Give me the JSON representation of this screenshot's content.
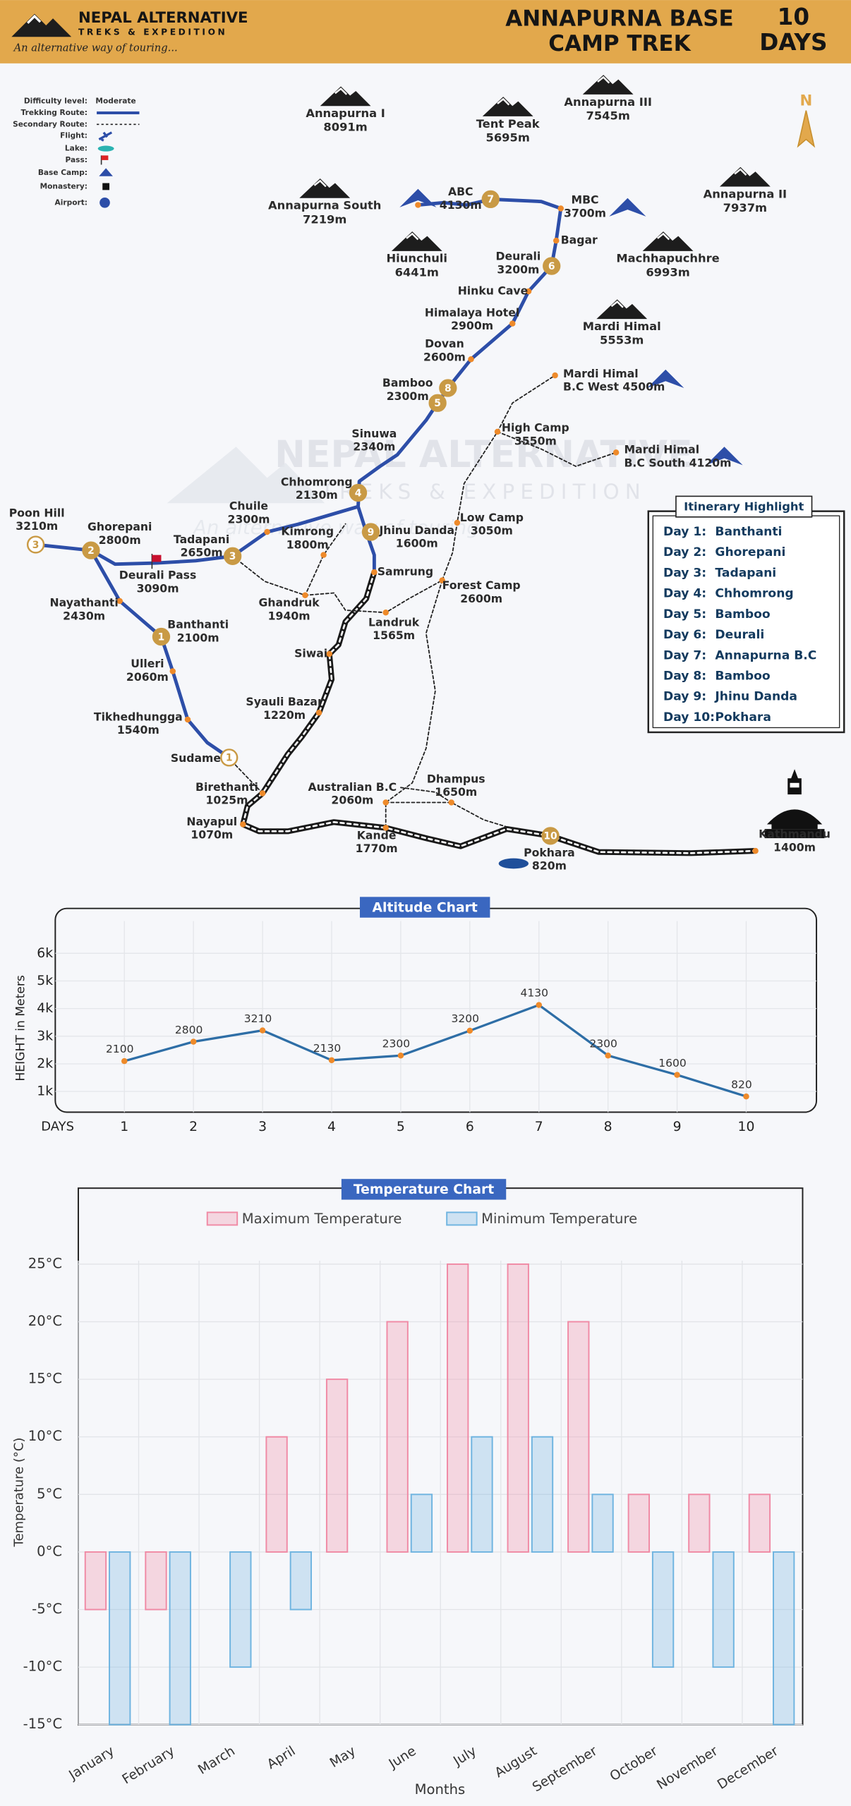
{
  "header": {
    "logo_name": "NEPAL ALTERNATIVE",
    "logo_sub": "TREKS & EXPEDITION",
    "tagline": "An alternative way of touring...",
    "title_lines": [
      "ANNAPURNA BASE",
      "CAMP TREK"
    ],
    "duration": [
      "10",
      "DAYS"
    ]
  },
  "legend": {
    "difficulty_label": "Difficulty level:",
    "difficulty": "Moderate",
    "items": [
      "Trekking Route:",
      "Secondary Route:",
      "Flight:",
      "Lake:",
      "Pass:",
      "Base Camp:",
      "Monastery:",
      "Airport:"
    ]
  },
  "compass": "N",
  "map": {
    "mountains": [
      {
        "name": "Annapurna I",
        "detail": "8091m"
      },
      {
        "name": "Tent Peak",
        "detail": "5695m"
      },
      {
        "name": "Annapurna III",
        "detail": "7545m"
      },
      {
        "name": "Annapurna South",
        "detail": "7219m"
      },
      {
        "name": "Annapurna II",
        "detail": "7937m"
      },
      {
        "name": "Hiunchuli",
        "detail": "6441m"
      },
      {
        "name": "Machhapuchhre",
        "detail": "6993m"
      },
      {
        "name": "Mardi Himal",
        "detail": "5553m"
      }
    ],
    "places": [
      {
        "name": "ABC",
        "detail": "4130m"
      },
      {
        "name": "MBC",
        "detail": "3700m"
      },
      {
        "name": "Bagar"
      },
      {
        "name": "Deurali",
        "detail": "3200m"
      },
      {
        "name": "Hinku Cave"
      },
      {
        "name": "Himalaya Hotel",
        "detail": "2900m"
      },
      {
        "name": "Dovan",
        "detail": "2600m"
      },
      {
        "name": "Bamboo",
        "detail": "2300m"
      },
      {
        "name": "Sinuwa",
        "detail": "2340m"
      },
      {
        "name": "Chhomrong",
        "detail": "2130m"
      },
      {
        "name": "Jhinu Danda",
        "detail": "1600m"
      },
      {
        "name": "Samrung"
      },
      {
        "name": "Landruk",
        "detail": "1565m"
      },
      {
        "name": "Forest Camp",
        "detail": "2600m"
      },
      {
        "name": "Low Camp",
        "detail": "3050m"
      },
      {
        "name": "High Camp",
        "detail": "3550m"
      },
      {
        "name": "Mardi Himal",
        "detail": "B.C West 4500m"
      },
      {
        "name": "Mardi Himal",
        "detail": "B.C South 4120m"
      },
      {
        "name": "Chuile",
        "detail": "2300m"
      },
      {
        "name": "Kimrong",
        "detail": "1800m"
      },
      {
        "name": "Tadapani",
        "detail": "2650m"
      },
      {
        "name": "Ghandruk",
        "detail": "1940m"
      },
      {
        "name": "Ghorepani",
        "detail": "2800m"
      },
      {
        "name": "Poon Hill",
        "detail": "3210m"
      },
      {
        "name": "Deurali Pass",
        "detail": "3090m"
      },
      {
        "name": "Nayathanti",
        "detail": "2430m"
      },
      {
        "name": "Banthanti",
        "detail": "2100m"
      },
      {
        "name": "Ulleri",
        "detail": "2060m"
      },
      {
        "name": "Tikhedhungga",
        "detail": "1540m"
      },
      {
        "name": "Siwai"
      },
      {
        "name": "Syauli Bazar",
        "detail": "1220m"
      },
      {
        "name": "Sudame"
      },
      {
        "name": "Birethanti",
        "detail": "1025m"
      },
      {
        "name": "Nayapul",
        "detail": "1070m"
      },
      {
        "name": "Australian B.C",
        "detail": "2060m"
      },
      {
        "name": "Dhampus",
        "detail": "1650m"
      },
      {
        "name": "Kande",
        "detail": "1770m"
      },
      {
        "name": "Pokhara",
        "detail": "820m"
      },
      {
        "name": "Kathmandu",
        "detail": "1400m"
      }
    ],
    "day_markers": [
      7,
      6,
      8,
      5,
      4,
      9,
      3,
      2,
      3,
      1,
      1,
      10
    ]
  },
  "itinerary": {
    "title": "Itinerary Highlight",
    "rows": [
      [
        "Day 1:",
        "Banthanti"
      ],
      [
        "Day 2:",
        "Ghorepani"
      ],
      [
        "Day 3:",
        "Tadapani"
      ],
      [
        "Day 4:",
        "Chhomrong"
      ],
      [
        "Day 5:",
        "Bamboo"
      ],
      [
        "Day 6:",
        "Deurali"
      ],
      [
        "Day 7:",
        "Annapurna B.C"
      ],
      [
        "Day 8:",
        "Bamboo"
      ],
      [
        "Day 9:",
        "Jhinu Danda"
      ],
      [
        "Day 10:",
        "Pokhara"
      ]
    ]
  },
  "chart_data": [
    {
      "type": "line",
      "title": "Altitude Chart",
      "y_label": "HEIGHT in Meters",
      "x_label": "DAYS",
      "categories": [
        1,
        2,
        3,
        4,
        5,
        6,
        7,
        8,
        9,
        10
      ],
      "values": [
        2100,
        2800,
        3210,
        2130,
        2300,
        3200,
        4130,
        2300,
        1600,
        820
      ],
      "color": "#2e6ea6",
      "marker_color": "#ee8a2a",
      "ylim": [
        250,
        7500
      ],
      "yticks": [
        {
          "value": 1000,
          "label": "1k"
        },
        {
          "value": 2000,
          "label": "2k"
        },
        {
          "value": 3000,
          "label": "3k"
        },
        {
          "value": 4000,
          "label": "4k"
        },
        {
          "value": 5000,
          "label": "5k"
        },
        {
          "value": 6000,
          "label": "6k"
        }
      ],
      "grid": true
    },
    {
      "type": "bar",
      "title": "Temperature Chart",
      "y_label": "Temperature (°C)",
      "x_label": "Months",
      "categories": [
        "January",
        "February",
        "March",
        "April",
        "May",
        "June",
        "July",
        "August",
        "September",
        "October",
        "November",
        "December"
      ],
      "series": [
        {
          "name": "Maximum Temperature",
          "color": "#f08aa5",
          "values": [
            -5,
            -5,
            0,
            10,
            15,
            20,
            25,
            25,
            20,
            5,
            5,
            5
          ]
        },
        {
          "name": "Minimum Temperature",
          "color": "#6fb4e0",
          "values": [
            -15,
            -15,
            -10,
            -5,
            0,
            5,
            10,
            10,
            5,
            -10,
            -10,
            -15
          ]
        }
      ],
      "ylim": [
        -15,
        31.5
      ],
      "yticks": [
        {
          "value": -15,
          "label": "-15°C"
        },
        {
          "value": -10,
          "label": "-10°C"
        },
        {
          "value": -5,
          "label": "-5°C"
        },
        {
          "value": 0,
          "label": "0°C"
        },
        {
          "value": 5,
          "label": "5°C"
        },
        {
          "value": 10,
          "label": "10°C"
        },
        {
          "value": 15,
          "label": "15°C"
        },
        {
          "value": 20,
          "label": "20°C"
        },
        {
          "value": 25,
          "label": "25°C"
        }
      ],
      "grid": true
    }
  ]
}
